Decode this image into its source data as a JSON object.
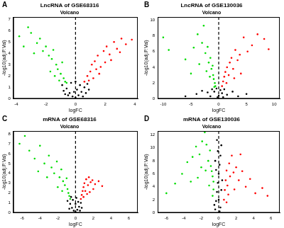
{
  "chart_data": [
    {
      "type": "scatter",
      "panel": "A",
      "title": "LncRNA of GSE68316",
      "subtitle": "Volcano",
      "x_label": "logFC",
      "y_label": "-log10(adj.P.Val)",
      "xlim": [
        -4.2,
        4.2
      ],
      "xticks": [
        -4,
        -2,
        0,
        2,
        4
      ],
      "ylim": [
        0,
        7.2
      ],
      "yticks": [
        0,
        1,
        2,
        3,
        4,
        5,
        6,
        7
      ],
      "grid": false,
      "vline": 0,
      "series": [
        {
          "color": "#00dd00",
          "points": [
            [
              -3.8,
              5.5
            ],
            [
              -3.2,
              6.3
            ],
            [
              -3.0,
              5.8
            ],
            [
              -2.6,
              4.9
            ],
            [
              -2.4,
              5.3
            ],
            [
              -2.2,
              4.2
            ],
            [
              -2.0,
              4.6
            ],
            [
              -1.8,
              3.8
            ],
            [
              -1.6,
              3.5
            ],
            [
              -1.5,
              4.3
            ],
            [
              -1.3,
              3.0
            ],
            [
              -1.2,
              2.6
            ],
            [
              -1.0,
              2.2
            ],
            [
              -0.9,
              3.2
            ],
            [
              -0.8,
              1.8
            ],
            [
              -0.7,
              1.5
            ],
            [
              -1.4,
              2.0
            ],
            [
              -1.1,
              1.6
            ],
            [
              -2.8,
              4.0
            ],
            [
              -3.5,
              4.6
            ],
            [
              -0.6,
              1.4
            ],
            [
              -1.7,
              2.4
            ]
          ]
        },
        {
          "color": "#000000",
          "points": [
            [
              -0.9,
              1.2
            ],
            [
              -0.6,
              0.9
            ],
            [
              -0.4,
              0.5
            ],
            [
              -0.2,
              0.2
            ],
            [
              0,
              0.1
            ],
            [
              0.2,
              0.3
            ],
            [
              0.4,
              0.6
            ],
            [
              0.6,
              1.0
            ],
            [
              0.8,
              1.3
            ],
            [
              -0.3,
              1.4
            ],
            [
              0.3,
              1.2
            ],
            [
              -0.5,
              0.3
            ],
            [
              0.5,
              0.2
            ],
            [
              0.1,
              0.8
            ],
            [
              -0.1,
              0.6
            ],
            [
              0.7,
              0.5
            ],
            [
              -0.7,
              0.4
            ],
            [
              0.9,
              0.8
            ],
            [
              -0.8,
              0.7
            ],
            [
              0,
              1.5
            ]
          ]
        },
        {
          "color": "#ff0000",
          "points": [
            [
              0.6,
              1.5
            ],
            [
              0.8,
              2.0
            ],
            [
              1.0,
              2.4
            ],
            [
              1.1,
              3.0
            ],
            [
              1.3,
              3.3
            ],
            [
              1.5,
              3.8
            ],
            [
              1.7,
              2.8
            ],
            [
              1.9,
              4.2
            ],
            [
              2.1,
              4.6
            ],
            [
              2.3,
              3.9
            ],
            [
              2.6,
              5.0
            ],
            [
              2.8,
              4.4
            ],
            [
              3.1,
              5.3
            ],
            [
              3.4,
              4.8
            ],
            [
              3.8,
              5.2
            ],
            [
              1.2,
              1.8
            ],
            [
              1.6,
              2.2
            ],
            [
              2.0,
              3.2
            ],
            [
              0.9,
              1.6
            ],
            [
              1.4,
              2.6
            ],
            [
              2.4,
              3.4
            ],
            [
              3.0,
              4.1
            ]
          ]
        }
      ]
    },
    {
      "type": "scatter",
      "panel": "B",
      "title": "LncRNA of GSE130036",
      "subtitle": "Volcano",
      "x_label": "logFC",
      "y_label": "-log10(adj.P.Val)",
      "xlim": [
        -11,
        11
      ],
      "xticks": [
        -10,
        -5,
        0,
        5,
        10
      ],
      "ylim": [
        0,
        10.4
      ],
      "yticks": [
        0,
        2,
        4,
        6,
        8,
        10
      ],
      "grid": false,
      "vline": 0,
      "series": [
        {
          "color": "#00dd00",
          "points": [
            [
              -10,
              7.8
            ],
            [
              -9,
              6.2
            ],
            [
              -6,
              5.0
            ],
            [
              -4.5,
              6.5
            ],
            [
              -3.8,
              8.2
            ],
            [
              -3.0,
              7.1
            ],
            [
              -2.7,
              9.3
            ],
            [
              -2.4,
              5.8
            ],
            [
              -2.0,
              6.6
            ],
            [
              -1.8,
              4.6
            ],
            [
              -1.5,
              5.2
            ],
            [
              -1.3,
              3.8
            ],
            [
              -1.1,
              4.2
            ],
            [
              -1.0,
              3.0
            ],
            [
              -0.9,
              2.5
            ],
            [
              -0.7,
              2.0
            ],
            [
              -0.6,
              1.6
            ],
            [
              -2.2,
              3.5
            ],
            [
              -3.5,
              4.4
            ],
            [
              -1.6,
              2.8
            ],
            [
              -5,
              3.2
            ],
            [
              -0.8,
              1.5
            ]
          ]
        },
        {
          "color": "#000000",
          "points": [
            [
              -6,
              0.3
            ],
            [
              -4,
              0.6
            ],
            [
              -3,
              1.0
            ],
            [
              -2,
              0.8
            ],
            [
              -1.2,
              1.2
            ],
            [
              -0.8,
              0.9
            ],
            [
              -0.4,
              1.3
            ],
            [
              0,
              0.4
            ],
            [
              0.3,
              1.1
            ],
            [
              0.6,
              0.7
            ],
            [
              1.0,
              1.2
            ],
            [
              1.5,
              0.5
            ],
            [
              2.5,
              0.9
            ],
            [
              3.5,
              0.3
            ],
            [
              5,
              0.6
            ],
            [
              -0.2,
              0.2
            ],
            [
              0.8,
              0.2
            ],
            [
              -1.5,
              0.3
            ]
          ]
        },
        {
          "color": "#ff0000",
          "points": [
            [
              0.6,
              1.6
            ],
            [
              0.8,
              2.2
            ],
            [
              1.0,
              2.8
            ],
            [
              1.2,
              3.4
            ],
            [
              1.5,
              4.0
            ],
            [
              1.8,
              3.0
            ],
            [
              2.0,
              4.6
            ],
            [
              2.3,
              5.2
            ],
            [
              2.6,
              3.8
            ],
            [
              3.0,
              6.2
            ],
            [
              3.4,
              4.9
            ],
            [
              3.8,
              5.6
            ],
            [
              4.5,
              7.8
            ],
            [
              5.2,
              6.0
            ],
            [
              6.0,
              6.8
            ],
            [
              7.0,
              8.2
            ],
            [
              8.2,
              7.6
            ],
            [
              1.4,
              2.0
            ],
            [
              2.8,
              2.6
            ],
            [
              4.0,
              3.2
            ],
            [
              9,
              6.3
            ]
          ]
        }
      ]
    },
    {
      "type": "scatter",
      "panel": "C",
      "title": "mRNA of GSE68316",
      "subtitle": "Volcano",
      "x_label": "logFC",
      "y_label": "-log10(adj.P.Val)",
      "xlim": [
        -7,
        7
      ],
      "xticks": [
        -6,
        -4,
        -2,
        0,
        2,
        4,
        6
      ],
      "ylim": [
        0,
        8.3
      ],
      "yticks": [
        0,
        1,
        2,
        3,
        4,
        5,
        6,
        7,
        8
      ],
      "grid": false,
      "vline": 0,
      "series": [
        {
          "color": "#00dd00",
          "points": [
            [
              -6.3,
              7.0
            ],
            [
              -5.7,
              7.8
            ],
            [
              -5.2,
              6.3
            ],
            [
              -4.6,
              5.5
            ],
            [
              -4.0,
              6.8
            ],
            [
              -3.5,
              5.0
            ],
            [
              -3.0,
              5.8
            ],
            [
              -2.7,
              4.6
            ],
            [
              -2.4,
              4.0
            ],
            [
              -2.1,
              5.2
            ],
            [
              -1.8,
              3.6
            ],
            [
              -1.6,
              4.4
            ],
            [
              -1.4,
              3.2
            ],
            [
              -1.2,
              2.8
            ],
            [
              -1.0,
              3.5
            ],
            [
              -0.9,
              2.4
            ],
            [
              -0.8,
              2.0
            ],
            [
              -0.7,
              1.7
            ],
            [
              -0.6,
              1.4
            ],
            [
              -2.0,
              2.6
            ],
            [
              -3.2,
              3.6
            ],
            [
              -4.2,
              4.2
            ],
            [
              -1.5,
              2.2
            ]
          ]
        },
        {
          "color": "#000000",
          "points": [
            [
              -0.9,
              1.2
            ],
            [
              -0.6,
              0.9
            ],
            [
              -0.4,
              0.5
            ],
            [
              -0.2,
              0.2
            ],
            [
              0,
              0.1
            ],
            [
              0.2,
              0.3
            ],
            [
              0.4,
              0.6
            ],
            [
              0.6,
              1.0
            ],
            [
              -0.3,
              1.3
            ],
            [
              0.3,
              1.1
            ],
            [
              0,
              0.9
            ],
            [
              -0.7,
              0.4
            ],
            [
              0.7,
              0.5
            ],
            [
              0.5,
              0.2
            ],
            [
              -0.5,
              1.6
            ],
            [
              0.1,
              1.5
            ]
          ]
        },
        {
          "color": "#ff0000",
          "points": [
            [
              0.6,
              1.4
            ],
            [
              0.7,
              1.8
            ],
            [
              0.8,
              2.2
            ],
            [
              0.9,
              2.6
            ],
            [
              1.0,
              3.0
            ],
            [
              1.1,
              2.2
            ],
            [
              1.2,
              3.4
            ],
            [
              1.4,
              2.8
            ],
            [
              1.5,
              3.6
            ],
            [
              1.7,
              3.1
            ],
            [
              1.9,
              3.3
            ],
            [
              2.2,
              2.9
            ],
            [
              2.6,
              3.2
            ],
            [
              3.0,
              2.7
            ],
            [
              1.3,
              1.9
            ],
            [
              0.9,
              1.6
            ],
            [
              2.0,
              2.4
            ],
            [
              1.6,
              2.1
            ]
          ]
        }
      ]
    },
    {
      "type": "scatter",
      "panel": "D",
      "title": "mRNA of GSE130036",
      "subtitle": "Volcano",
      "x_label": "logFC",
      "y_label": "-log10(adj.P.Val)",
      "xlim": [
        -7,
        7
      ],
      "xticks": [
        -6,
        -4,
        -2,
        0,
        2,
        4,
        6
      ],
      "ylim": [
        0,
        12.6
      ],
      "yticks": [
        0,
        2,
        4,
        6,
        8,
        10,
        12
      ],
      "grid": false,
      "vline": 0,
      "series": [
        {
          "color": "#00dd00",
          "points": [
            [
              -6.0,
              3.0
            ],
            [
              -5.0,
              4.5
            ],
            [
              -4.2,
              6.0
            ],
            [
              -3.6,
              7.8
            ],
            [
              -3.0,
              8.6
            ],
            [
              -2.6,
              10.2
            ],
            [
              -2.2,
              9.0
            ],
            [
              -1.9,
              11.0
            ],
            [
              -1.6,
              12.4
            ],
            [
              -1.4,
              10.5
            ],
            [
              -1.2,
              8.0
            ],
            [
              -1.0,
              9.6
            ],
            [
              -0.9,
              7.2
            ],
            [
              -0.8,
              6.4
            ],
            [
              -0.7,
              5.6
            ],
            [
              -0.6,
              4.8
            ],
            [
              -0.6,
              3.6
            ],
            [
              -1.1,
              4.2
            ],
            [
              -1.5,
              6.5
            ],
            [
              -2.4,
              5.4
            ],
            [
              -3.2,
              4.8
            ],
            [
              -0.7,
              2.6
            ],
            [
              -2.0,
              7.0
            ]
          ]
        },
        {
          "color": "#000000",
          "points": [
            [
              -0.4,
              0.5
            ],
            [
              -0.3,
              1.8
            ],
            [
              -0.2,
              3.2
            ],
            [
              -0.1,
              4.6
            ],
            [
              0,
              6.0
            ],
            [
              0.1,
              7.4
            ],
            [
              0.2,
              8.8
            ],
            [
              0.3,
              10.4
            ],
            [
              -0.3,
              6.6
            ],
            [
              0.4,
              5.0
            ],
            [
              -0.4,
              8.0
            ],
            [
              0,
              2.0
            ],
            [
              0.2,
              0.8
            ],
            [
              -0.1,
              9.5
            ],
            [
              0.3,
              3.5
            ],
            [
              -0.2,
              11.2
            ],
            [
              0.1,
              0.2
            ],
            [
              -0.5,
              1.2
            ]
          ]
        },
        {
          "color": "#ff0000",
          "points": [
            [
              0.6,
              2.0
            ],
            [
              0.7,
              3.5
            ],
            [
              0.8,
              5.0
            ],
            [
              0.9,
              6.5
            ],
            [
              1.0,
              4.2
            ],
            [
              1.2,
              7.6
            ],
            [
              1.3,
              5.6
            ],
            [
              1.5,
              8.8
            ],
            [
              1.7,
              6.2
            ],
            [
              2.0,
              7.0
            ],
            [
              2.3,
              5.0
            ],
            [
              2.7,
              6.4
            ],
            [
              3.1,
              4.0
            ],
            [
              3.6,
              5.2
            ],
            [
              4.2,
              3.0
            ],
            [
              5.0,
              3.8
            ],
            [
              5.6,
              2.6
            ],
            [
              1.1,
              2.8
            ],
            [
              1.8,
              3.6
            ],
            [
              2.5,
              9.0
            ],
            [
              0.9,
              1.6
            ]
          ]
        }
      ]
    }
  ]
}
